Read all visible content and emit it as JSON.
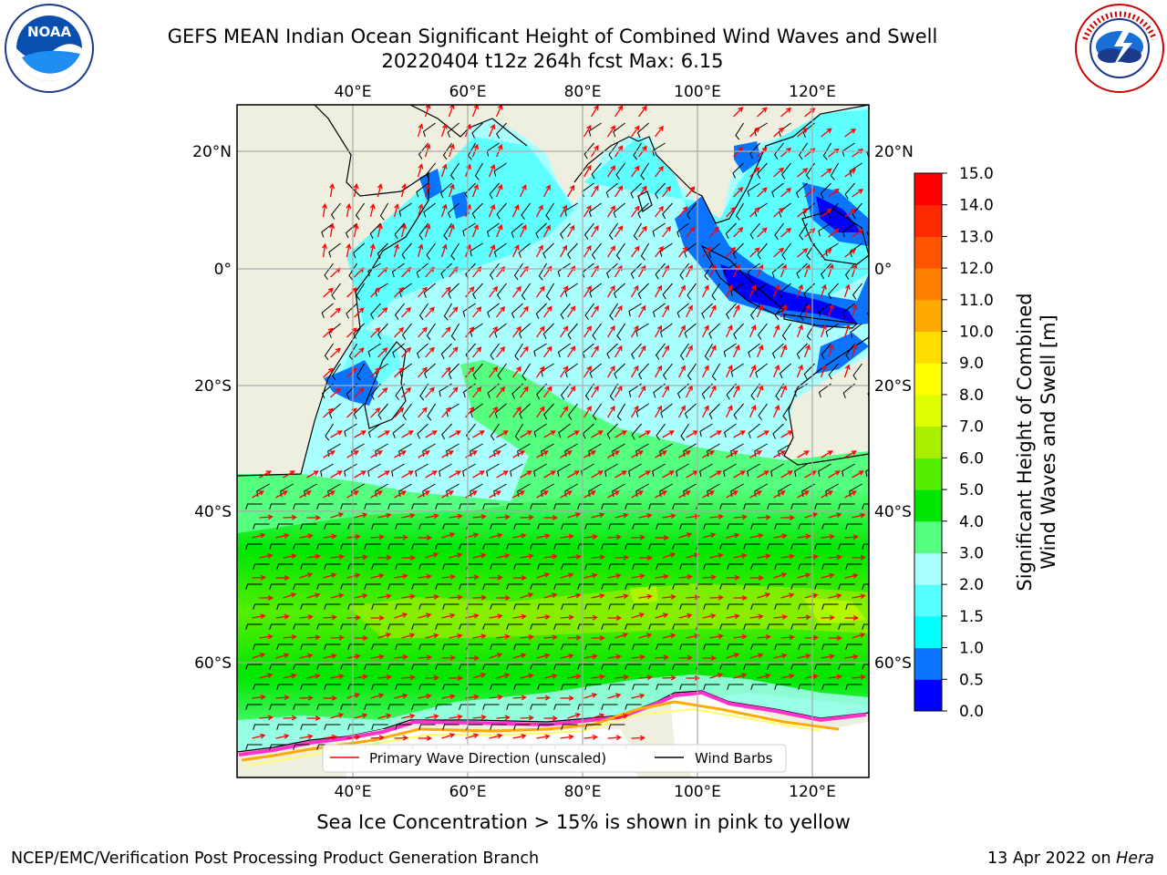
{
  "title": {
    "line1": "GEFS MEAN Indian Ocean Significant Height of Combined Wind Waves and Swell",
    "line2": "20220404 t12z 264h fcst   Max: 6.15"
  },
  "logos": {
    "left": {
      "text": "NOAA",
      "ring_text": "NATIONAL OCEANIC AND ATMOSPHERIC ADMINISTRATION · U.S. DEPARTMENT OF COMMERCE"
    },
    "right": {
      "ring_text": "NATIONAL WEATHER SERVICE"
    }
  },
  "map": {
    "lon_ticks_top": [
      "40°E",
      "60°E",
      "80°E",
      "100°E",
      "120°E"
    ],
    "lon_ticks_bottom": [
      "40°E",
      "60°E",
      "80°E",
      "100°E",
      "120°E"
    ],
    "lat_ticks_left": [
      "20°N",
      "0°",
      "20°S",
      "40°S",
      "60°S"
    ],
    "lat_ticks_right": [
      "20°N",
      "0°",
      "20°S",
      "40°S",
      "60°S"
    ],
    "land_color": "#efefdf",
    "grid": true,
    "legend": {
      "wave": "Primary Wave Direction (unscaled)",
      "barb": "Wind Barbs",
      "wave_color": "#ff0000",
      "barb_color": "#000000"
    }
  },
  "colorbar": {
    "title_line1": "Significant Height of Combined",
    "title_line2": "Wind Waves and Swell [m]",
    "ticks": [
      "0.0",
      "0.5",
      "1.0",
      "1.5",
      "2.0",
      "3.0",
      "4.0",
      "5.0",
      "6.0",
      "7.0",
      "8.0",
      "9.0",
      "10.0",
      "11.0",
      "12.0",
      "13.0",
      "14.0",
      "15.0"
    ],
    "colors": [
      "#0000ff",
      "#0a74ff",
      "#00ffff",
      "#55ffff",
      "#aaffff",
      "#55ff80",
      "#00e600",
      "#55ee00",
      "#aaee00",
      "#ddff00",
      "#ffff00",
      "#ffdd00",
      "#ffaa00",
      "#ff8000",
      "#ff5500",
      "#ff2a00",
      "#ff0000"
    ]
  },
  "caption": "Sea Ice Concentration > 15% is shown in pink to yellow",
  "footer": {
    "left": "NCEP/EMC/Verification Post Processing Product Generation Branch",
    "right_prefix": "13 Apr 2022 on ",
    "right_host": "Hera"
  }
}
